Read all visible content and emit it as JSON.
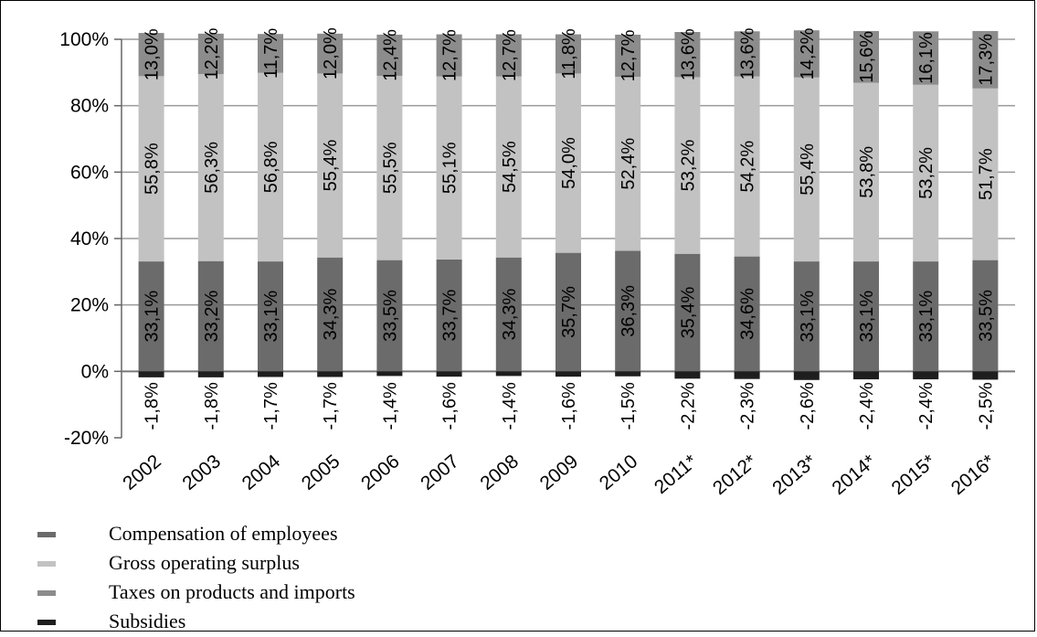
{
  "chart_data": {
    "type": "bar",
    "stacked": true,
    "ylim": [
      -20,
      100
    ],
    "y_ticks": [
      "-20%",
      "0%",
      "20%",
      "40%",
      "60%",
      "80%",
      "100%"
    ],
    "grid": true,
    "legend_position": "bottom-left",
    "categories": [
      "2002",
      "2003",
      "2004",
      "2005",
      "2006",
      "2007",
      "2008",
      "2009",
      "2010",
      "2011*",
      "2012*",
      "2013*",
      "2014*",
      "2015*",
      "2016*"
    ],
    "series": [
      {
        "name": "Compensation of employees",
        "color": "#6b6b6b",
        "values": [
          33.1,
          33.2,
          33.1,
          34.3,
          33.5,
          33.7,
          34.3,
          35.7,
          36.3,
          35.4,
          34.6,
          33.1,
          33.1,
          33.1,
          33.5
        ],
        "labels": [
          "33,1%",
          "33,2%",
          "33,1%",
          "34,3%",
          "33,5%",
          "33,7%",
          "34,3%",
          "35,7%",
          "36,3%",
          "35,4%",
          "34,6%",
          "33,1%",
          "33,1%",
          "33,1%",
          "33,5%"
        ]
      },
      {
        "name": "Gross operating surplus",
        "color": "#c2c2c2",
        "values": [
          55.8,
          56.3,
          56.8,
          55.4,
          55.5,
          55.1,
          54.5,
          54.0,
          52.4,
          53.2,
          54.2,
          55.4,
          53.8,
          53.2,
          51.7
        ],
        "labels": [
          "55,8%",
          "56,3%",
          "56,8%",
          "55,4%",
          "55,5%",
          "55,1%",
          "54,5%",
          "54,0%",
          "52,4%",
          "53,2%",
          "54,2%",
          "55,4%",
          "53,8%",
          "53,2%",
          "51,7%"
        ]
      },
      {
        "name": "Taxes on products and imports",
        "color": "#8c8c8c",
        "values": [
          13.0,
          12.2,
          11.7,
          12.0,
          12.4,
          12.7,
          12.7,
          11.8,
          12.7,
          13.6,
          13.6,
          14.2,
          15.6,
          16.1,
          17.3
        ],
        "labels": [
          "13,0%",
          "12,2%",
          "11,7%",
          "12,0%",
          "12,4%",
          "12,7%",
          "12,7%",
          "11,8%",
          "12,7%",
          "13,6%",
          "13,6%",
          "14,2%",
          "15,6%",
          "16,1%",
          "17,3%"
        ]
      },
      {
        "name": "Subsidies",
        "color": "#1e1e1e",
        "values": [
          -1.8,
          -1.8,
          -1.7,
          -1.7,
          -1.4,
          -1.6,
          -1.4,
          -1.6,
          -1.5,
          -2.2,
          -2.3,
          -2.6,
          -2.4,
          -2.4,
          -2.5
        ],
        "labels": [
          "-1,8%",
          "-1,8%",
          "-1,7%",
          "-1,7%",
          "-1,4%",
          "-1,6%",
          "-1,4%",
          "-1,6%",
          "-1,5%",
          "-2,2%",
          "-2,3%",
          "-2,6%",
          "-2,4%",
          "-2,4%",
          "-2,5%"
        ]
      }
    ]
  }
}
